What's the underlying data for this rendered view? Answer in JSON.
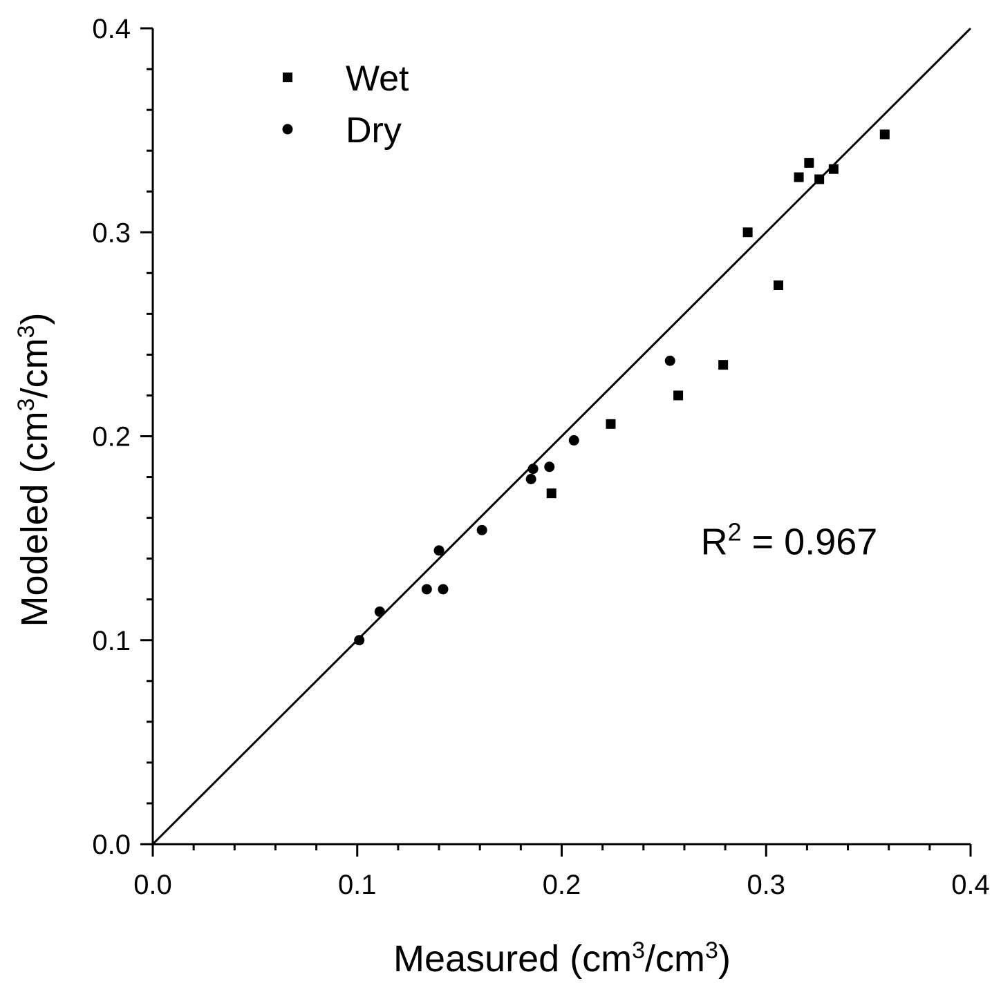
{
  "chart_data": {
    "type": "scatter",
    "title": "",
    "xlabel": {
      "prefix": "Measured (cm",
      "sup1": "3",
      "mid": "/cm",
      "sup2": "3",
      "suffix": ")"
    },
    "ylabel": {
      "prefix": "Modeled (cm",
      "sup1": "3",
      "mid": "/cm",
      "sup2": "3",
      "suffix": ")"
    },
    "xlim": [
      0.0,
      0.4
    ],
    "ylim": [
      0.0,
      0.4
    ],
    "xticks": [
      "0.0",
      "0.1",
      "0.2",
      "0.3",
      "0.4"
    ],
    "yticks": [
      "0.0",
      "0.1",
      "0.2",
      "0.3",
      "0.4"
    ],
    "minor_tick_step": 0.02,
    "grid": false,
    "legend_position": "top-left",
    "reference_line": {
      "from": [
        0.0,
        0.0
      ],
      "to": [
        0.4,
        0.4
      ]
    },
    "annotation": {
      "base": "R",
      "sup": "2",
      "rest": " = 0.967",
      "x": 0.268,
      "y": 0.142
    },
    "series": [
      {
        "name": "Wet",
        "marker": "square",
        "color": "#000000",
        "points": [
          [
            0.195,
            0.172
          ],
          [
            0.224,
            0.206
          ],
          [
            0.257,
            0.22
          ],
          [
            0.279,
            0.235
          ],
          [
            0.291,
            0.3
          ],
          [
            0.306,
            0.274
          ],
          [
            0.316,
            0.327
          ],
          [
            0.321,
            0.334
          ],
          [
            0.326,
            0.326
          ],
          [
            0.333,
            0.331
          ],
          [
            0.358,
            0.348
          ]
        ]
      },
      {
        "name": "Dry",
        "marker": "circle",
        "color": "#000000",
        "points": [
          [
            0.101,
            0.1
          ],
          [
            0.111,
            0.114
          ],
          [
            0.134,
            0.125
          ],
          [
            0.142,
            0.125
          ],
          [
            0.14,
            0.144
          ],
          [
            0.161,
            0.154
          ],
          [
            0.185,
            0.179
          ],
          [
            0.186,
            0.184
          ],
          [
            0.194,
            0.185
          ],
          [
            0.206,
            0.198
          ],
          [
            0.253,
            0.237
          ]
        ]
      }
    ]
  }
}
